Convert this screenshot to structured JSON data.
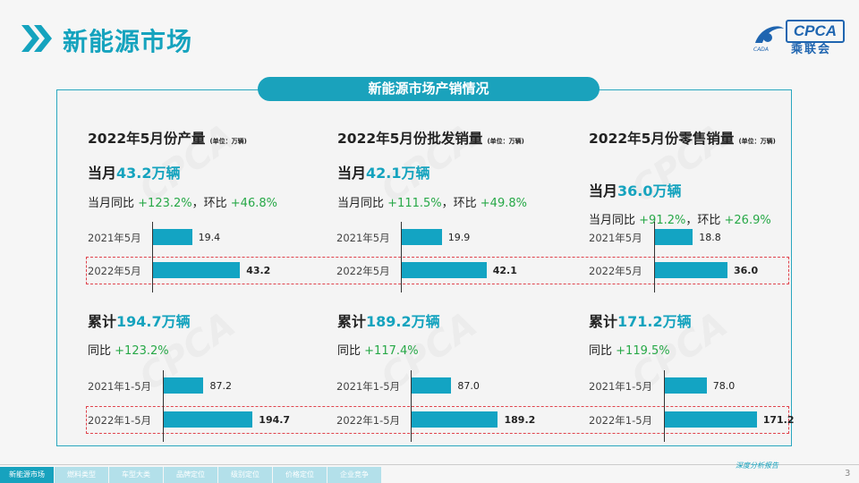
{
  "header": {
    "title": "新能源市场"
  },
  "logo": {
    "brand": "CPCA",
    "cn": "乘联会",
    "sub": "CADA"
  },
  "panel_title": "新能源市场产销情况",
  "columns": [
    {
      "title": "2022年5月份产量",
      "unit": "(单位：万辆)",
      "month_pre": "当月",
      "month_num": "43.2万辆",
      "month_yoy_label": "当月同比",
      "month_yoy": "+123.2%",
      "month_sep": "，环比",
      "month_mom": "+46.8%",
      "cum_pre": "累计",
      "cum_num": "194.7万辆",
      "cum_yoy_label": "同比",
      "cum_yoy": "+123.2%"
    },
    {
      "title": "2022年5月份批发销量",
      "unit": "(单位：万辆)",
      "month_pre": "当月",
      "month_num": "42.1万辆",
      "month_yoy_label": "当月同比",
      "month_yoy": "+111.5%",
      "month_sep": "，环比",
      "month_mom": "+49.8%",
      "cum_pre": "累计",
      "cum_num": "189.2万辆",
      "cum_yoy_label": "同比",
      "cum_yoy": "+117.4%"
    },
    {
      "title": "2022年5月份零售销量",
      "unit": "(单位：万辆)",
      "month_pre": "当月",
      "month_num": "36.0万辆",
      "month_yoy_label": "当月同比",
      "month_yoy": "+91.2%",
      "month_sep": "，环比",
      "month_mom": "+26.9%",
      "cum_pre": "累计",
      "cum_num": "171.2万辆",
      "cum_yoy_label": "同比",
      "cum_yoy": "+119.5%"
    }
  ],
  "chart_data": [
    {
      "type": "bar",
      "categories": [
        "2021年5月",
        "2022年5月"
      ],
      "values": [
        19.4,
        43.2
      ]
    },
    {
      "type": "bar",
      "categories": [
        "2021年5月",
        "2022年5月"
      ],
      "values": [
        19.9,
        42.1
      ]
    },
    {
      "type": "bar",
      "categories": [
        "2021年5月",
        "2022年5月"
      ],
      "values": [
        18.8,
        36.0
      ]
    },
    {
      "type": "bar",
      "categories": [
        "2021年1-5月",
        "2022年1-5月"
      ],
      "values": [
        87.2,
        194.7
      ]
    },
    {
      "type": "bar",
      "categories": [
        "2021年1-5月",
        "2022年1-5月"
      ],
      "values": [
        87.0,
        189.2
      ]
    },
    {
      "type": "bar",
      "categories": [
        "2021年1-5月",
        "2022年1-5月"
      ],
      "values": [
        78.0,
        171.2
      ]
    }
  ],
  "footer": {
    "tabs": [
      "新能源市场",
      "燃料类型",
      "车型大类",
      "品牌定位",
      "级别定位",
      "价格定位",
      "企业竞争"
    ],
    "note": "深度分析报告",
    "page": "3"
  },
  "colors": {
    "accent": "#15a3be",
    "bar": "#13a4c3",
    "positive": "#27a847",
    "highlight": "#e0434c"
  }
}
